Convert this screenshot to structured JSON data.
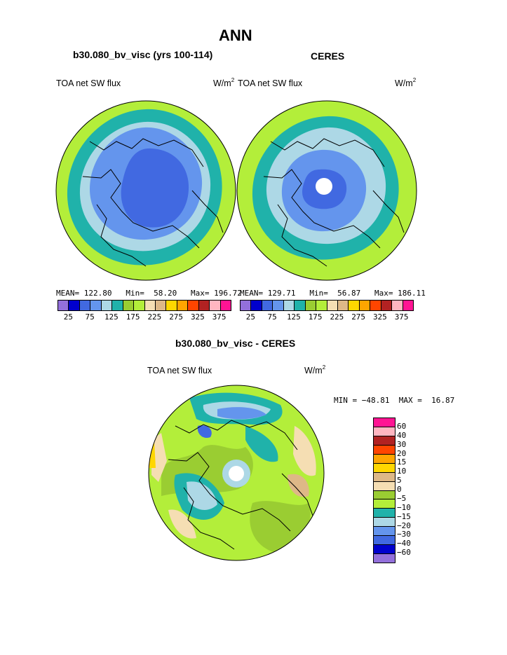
{
  "header": {
    "title": "ANN",
    "left_subtitle": "b30.080_bv_visc (yrs 100-114)",
    "right_subtitle": "CERES",
    "diff_subtitle": "b30.080_bv_visc - CERES"
  },
  "panels": {
    "left": {
      "variable": "TOA net SW flux",
      "units_base": "W/m",
      "units_exp": "2",
      "stats": "MEAN= 122.80   Min=  58.20   Max= 196.72"
    },
    "right": {
      "variable": "TOA net SW flux",
      "units_base": "W/m",
      "units_exp": "2",
      "stats": "MEAN= 129.71   Min=  56.87   Max= 186.11"
    },
    "diff": {
      "variable": "TOA net SW flux",
      "units_base": "W/m",
      "units_exp": "2",
      "stats": "MIN = −48.81  MAX =  16.87"
    }
  },
  "colorbar_top": {
    "colors": [
      "#9370db",
      "#0000cd",
      "#4169e1",
      "#6495ed",
      "#add8e6",
      "#20b2aa",
      "#9acd32",
      "#b3ee3a",
      "#f5deb3",
      "#deb887",
      "#ffd700",
      "#ffa500",
      "#ff4500",
      "#b22222",
      "#ffb6c1",
      "#ff1493"
    ],
    "labels": [
      "25",
      "75",
      "125",
      "175",
      "225",
      "275",
      "325",
      "375"
    ]
  },
  "colorbar_diff": {
    "colors": [
      "#ff1493",
      "#ffb6c1",
      "#b22222",
      "#ff4500",
      "#ffa500",
      "#ffd700",
      "#deb887",
      "#f5deb3",
      "#9acd32",
      "#b3ee3a",
      "#20b2aa",
      "#add8e6",
      "#6495ed",
      "#4169e1",
      "#0000cd",
      "#9370db"
    ],
    "labels": [
      "60",
      "40",
      "30",
      "20",
      "15",
      "10",
      "5",
      "0",
      "−5",
      "−10",
      "−15",
      "−20",
      "−30",
      "−40",
      "−60"
    ]
  },
  "colors": {
    "outer_green": "#b3ee3a",
    "teal": "#20b2aa",
    "light_blue": "#add8e6",
    "cornflower": "#6495ed",
    "royal_blue": "#4169e1",
    "olive": "#9acd32",
    "wheat": "#f5deb3",
    "tan": "#deb887"
  }
}
